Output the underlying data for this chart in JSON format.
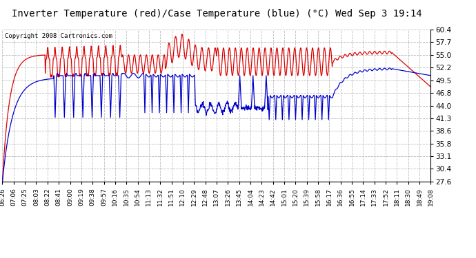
{
  "title": "Inverter Temperature (red)/Case Temperature (blue) (°C) Wed Sep 3 19:14",
  "copyright": "Copyright 2008 Cartronics.com",
  "yticks": [
    27.6,
    30.4,
    33.1,
    35.8,
    38.6,
    41.3,
    44.0,
    46.8,
    49.5,
    52.2,
    55.0,
    57.7,
    60.4
  ],
  "ylim": [
    27.6,
    60.4
  ],
  "xtick_labels": [
    "06:26",
    "07:06",
    "07:25",
    "08:03",
    "08:22",
    "08:41",
    "09:00",
    "09:19",
    "09:38",
    "09:57",
    "10:16",
    "10:35",
    "10:54",
    "11:13",
    "11:32",
    "11:51",
    "12:10",
    "12:29",
    "12:48",
    "13:07",
    "13:26",
    "13:45",
    "14:04",
    "14:23",
    "14:42",
    "15:01",
    "15:20",
    "15:39",
    "15:58",
    "16:17",
    "16:36",
    "16:55",
    "17:14",
    "17:33",
    "17:52",
    "18:11",
    "18:30",
    "18:49",
    "19:08"
  ],
  "bg_color": "#ffffff",
  "grid_color": "#bbbbbb",
  "red_color": "#dd0000",
  "blue_color": "#0000cc",
  "title_fontsize": 10,
  "copyright_fontsize": 6.5
}
